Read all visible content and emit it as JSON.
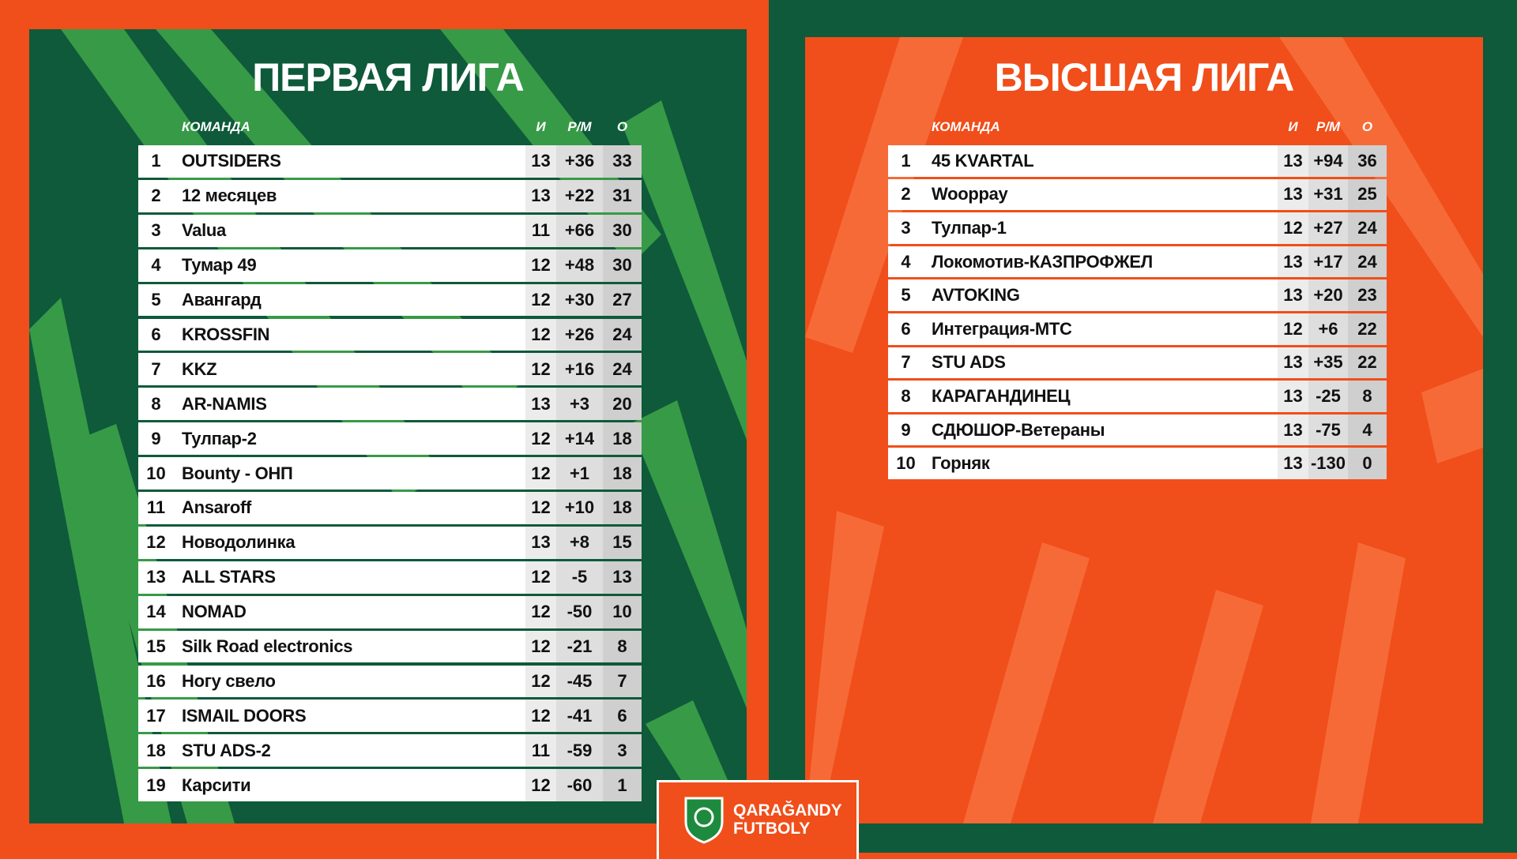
{
  "left": {
    "title": "ПЕРВАЯ ЛИГА",
    "columns": [
      "КОМАНДА",
      "И",
      "Р/М",
      "О"
    ],
    "rows": [
      [
        1,
        "OUTSIDERS",
        13,
        "+36",
        33
      ],
      [
        2,
        "12 месяцев",
        13,
        "+22",
        31
      ],
      [
        3,
        "Valua",
        11,
        "+66",
        30
      ],
      [
        4,
        "Тумар 49",
        12,
        "+48",
        30
      ],
      [
        5,
        "Авангард",
        12,
        "+30",
        27
      ],
      [
        6,
        "KROSSFIN",
        12,
        "+26",
        24
      ],
      [
        7,
        "KKZ",
        12,
        "+16",
        24
      ],
      [
        8,
        "AR-NAMIS",
        13,
        "+3",
        20
      ],
      [
        9,
        "Тулпар-2",
        12,
        "+14",
        18
      ],
      [
        10,
        "Bounty - ОНП",
        12,
        "+1",
        18
      ],
      [
        11,
        "Ansaroff",
        12,
        "+10",
        18
      ],
      [
        12,
        "Новодолинка",
        13,
        "+8",
        15
      ],
      [
        13,
        "ALL STARS",
        12,
        "-5",
        13
      ],
      [
        14,
        "NOMAD",
        12,
        "-50",
        10
      ],
      [
        15,
        "Silk Road electronics",
        12,
        "-21",
        8
      ],
      [
        16,
        "Ногу свело",
        12,
        "-45",
        7
      ],
      [
        17,
        "ISMAIL DOORS",
        12,
        "-41",
        6
      ],
      [
        18,
        "STU ADS-2",
        11,
        "-59",
        3
      ],
      [
        19,
        "Карсити",
        12,
        "-60",
        1
      ]
    ]
  },
  "right": {
    "title": "ВЫСШАЯ ЛИГА",
    "columns": [
      "КОМАНДА",
      "И",
      "Р/М",
      "О"
    ],
    "rows": [
      [
        1,
        "45 KVARTAL",
        13,
        "+94",
        36
      ],
      [
        2,
        "Wooppay",
        13,
        "+31",
        25
      ],
      [
        3,
        "Тулпар-1",
        12,
        "+27",
        24
      ],
      [
        4,
        "Локомотив-КАЗПРОФЖЕЛ",
        13,
        "+17",
        24
      ],
      [
        5,
        "AVTOKING",
        13,
        "+20",
        23
      ],
      [
        6,
        "Интеграция-МТС",
        12,
        "+6",
        22
      ],
      [
        7,
        "STU ADS",
        13,
        "+35",
        22
      ],
      [
        8,
        "КАРАГАНДИНЕЦ",
        13,
        "-25",
        8
      ],
      [
        9,
        "СДЮШОР-Ветераны",
        13,
        "-75",
        4
      ],
      [
        10,
        "Горняк",
        13,
        "-130",
        0
      ]
    ]
  },
  "logo": {
    "line1": "QARAĞANDY",
    "line2": "FUTBOLY"
  }
}
